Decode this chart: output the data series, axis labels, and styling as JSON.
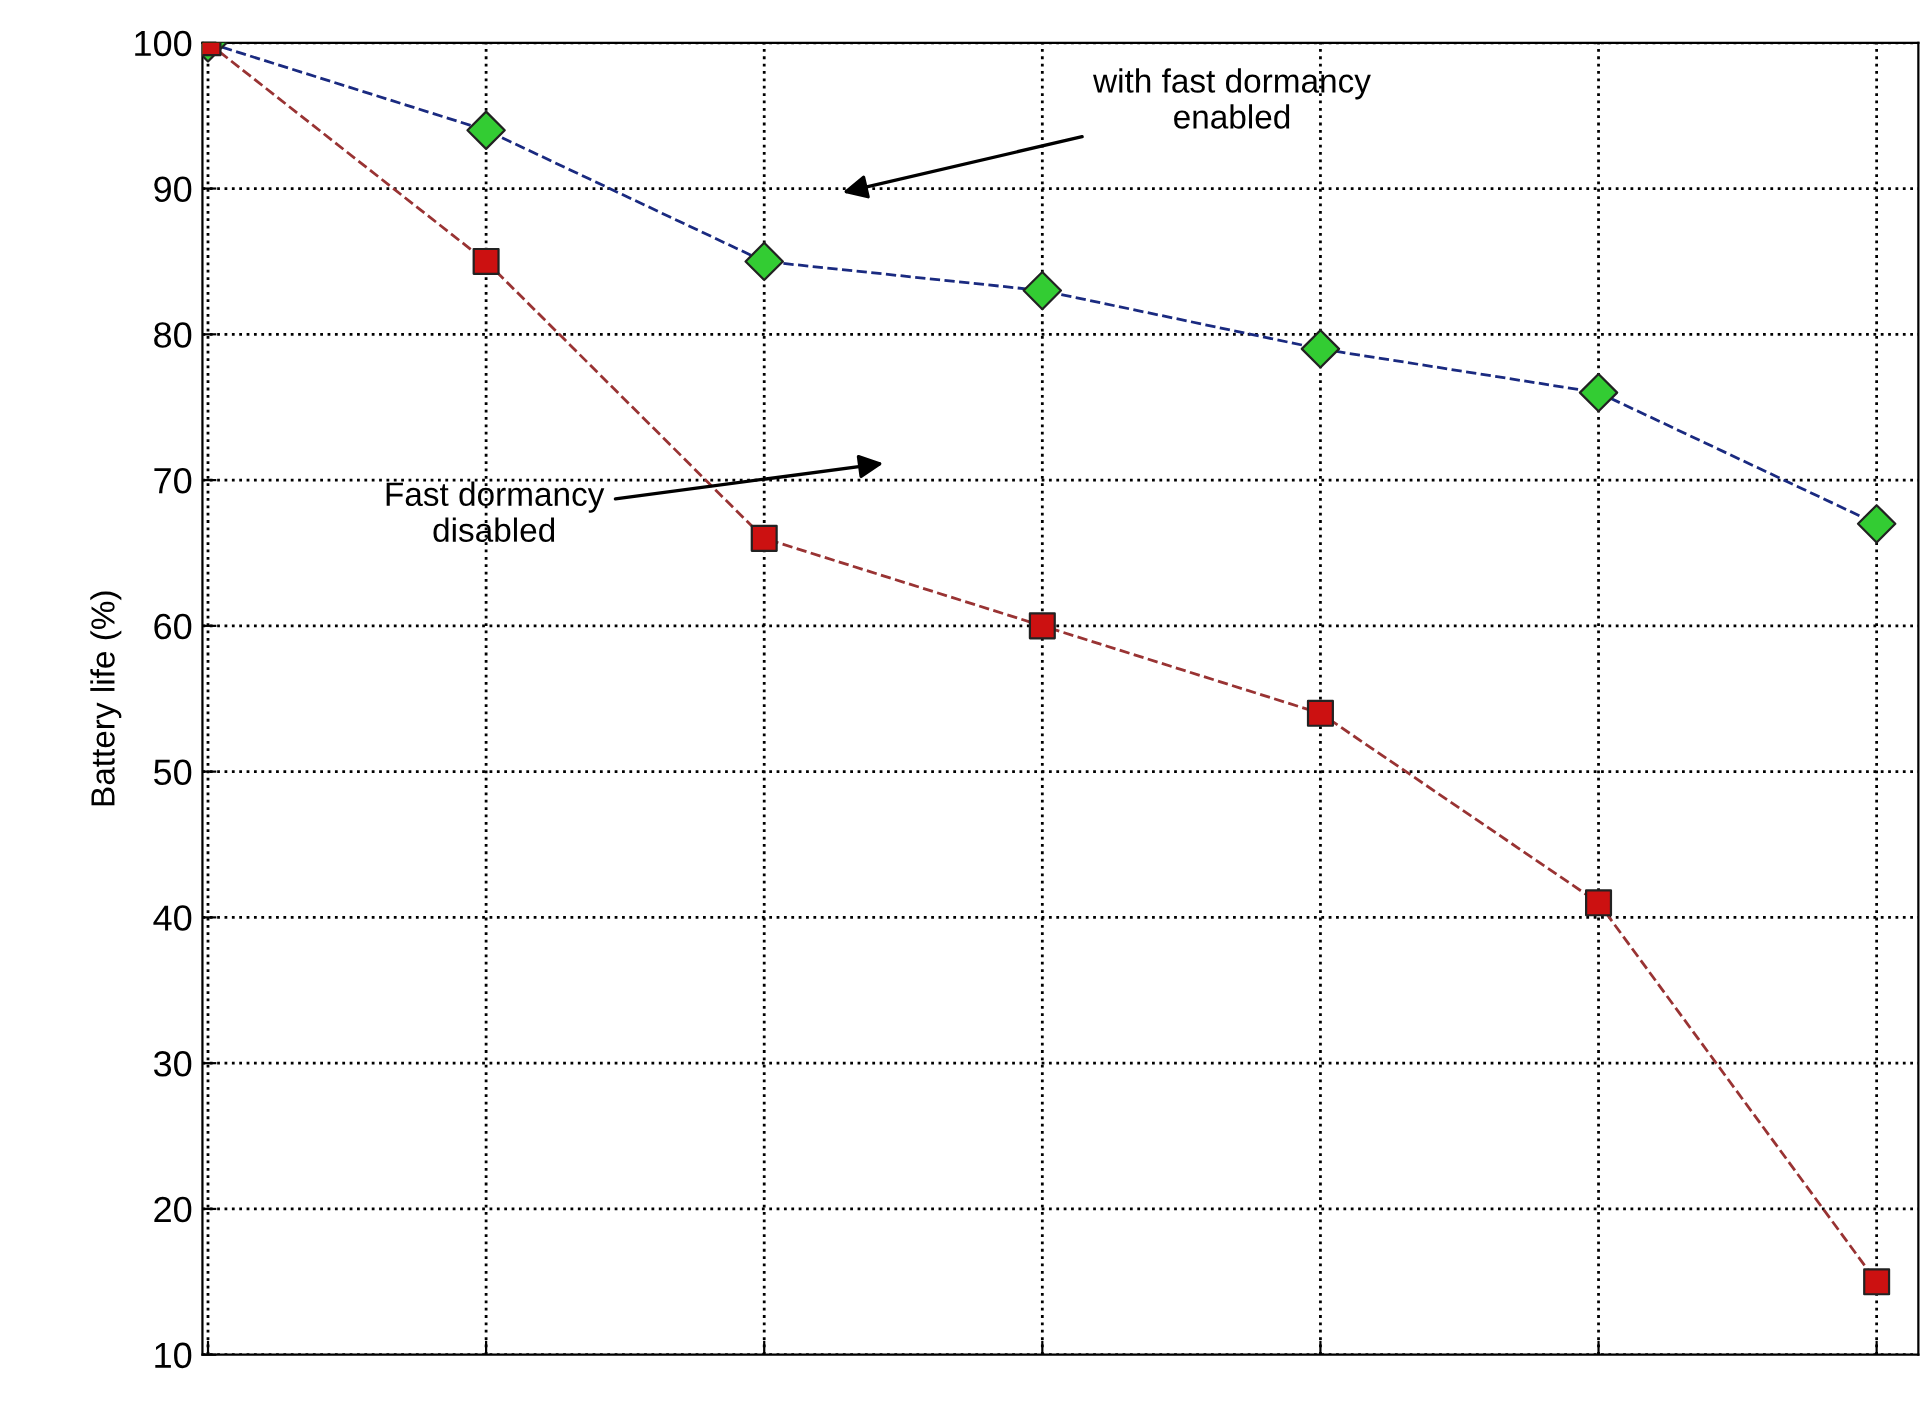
{
  "chart_data": {
    "type": "line",
    "ylabel": "Battery life (%)",
    "categories": [
      null,
      null,
      null,
      null,
      null,
      null,
      null
    ],
    "series": [
      {
        "color": "#1a2a80",
        "colors": [
          "#33cc33",
          "#33cc33",
          "#33cc33",
          "#33cc33",
          "#33cc33",
          "#33cc33",
          "#33cc33"
        ],
        "marker": "diamond",
        "values": [
          100,
          94,
          85,
          83,
          79,
          76,
          67
        ]
      },
      {
        "color": "#993333",
        "colors": [
          "#cc1111",
          "#cc1111",
          "#cc1111",
          "#cc1111",
          "#cc1111",
          "#cc1111",
          "#cc1111"
        ],
        "marker": "square",
        "values": [
          100,
          85,
          66,
          60,
          54,
          41,
          15
        ]
      }
    ],
    "line_style": "dashed",
    "ylim": [
      10,
      100
    ],
    "yticks": [
      10,
      20,
      30,
      40,
      50,
      60,
      70,
      80,
      90,
      100
    ],
    "tick_labels": "y",
    "grid": true,
    "legend": false,
    "annotations": [
      "with fast dormancy\nenabled",
      "Fast dormancy\ndisabled"
    ]
  }
}
